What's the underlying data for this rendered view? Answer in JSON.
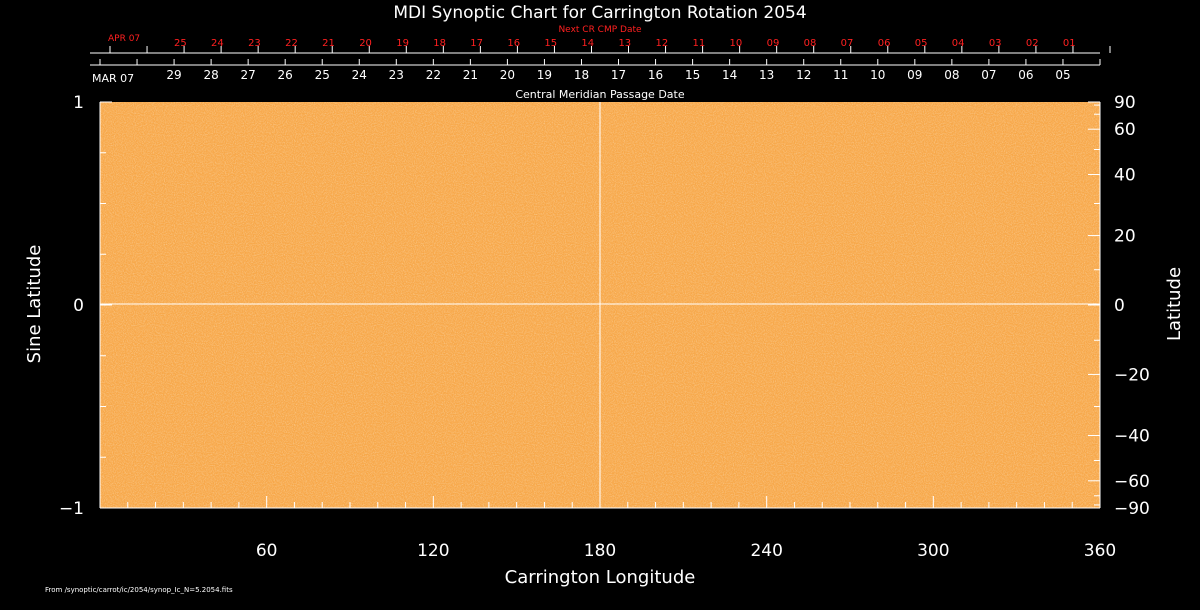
{
  "chart_data": {
    "type": "heatmap",
    "title": "MDI Synoptic Chart for Carrington Rotation 2054",
    "xlabel": "Carrington Longitude",
    "ylabel_left": "Sine Latitude",
    "ylabel_right": "Latitude",
    "xlim": [
      0,
      360
    ],
    "ylim": [
      -1,
      1
    ],
    "x_tick_labels": [
      "60",
      "120",
      "180",
      "240",
      "300",
      "360"
    ],
    "x_tick_values": [
      60,
      120,
      180,
      240,
      300,
      360
    ],
    "left_tick_labels": [
      "1",
      "0",
      "−1"
    ],
    "left_tick_values": [
      1,
      0,
      -1
    ],
    "right_tick_labels": [
      "90",
      "60",
      "40",
      "20",
      "0",
      "−20",
      "−40",
      "−60",
      "−90"
    ],
    "right_tick_values": [
      90,
      60,
      40,
      20,
      0,
      -20,
      -40,
      -60,
      -90
    ],
    "grid_lines": {
      "longitude": 180,
      "sine_latitude": 0
    },
    "map_color": "#f7a84a",
    "top_axis": {
      "title": "Central Meridian Passage Date",
      "month_label": "MAR 07",
      "dates": [
        "29",
        "28",
        "27",
        "26",
        "25",
        "24",
        "23",
        "22",
        "21",
        "20",
        "19",
        "18",
        "17",
        "16",
        "15",
        "14",
        "13",
        "12",
        "11",
        "10",
        "09",
        "08",
        "07",
        "06",
        "05"
      ]
    },
    "next_cr_axis": {
      "title": "Next CR CMP Date",
      "month_label": "APR 07",
      "dates": [
        "25",
        "24",
        "23",
        "22",
        "21",
        "20",
        "19",
        "18",
        "17",
        "16",
        "15",
        "14",
        "13",
        "12",
        "11",
        "10",
        "09",
        "08",
        "07",
        "06",
        "05",
        "04",
        "03",
        "02",
        "01"
      ],
      "color": "#ff2020"
    },
    "footer": "From /synoptic/carrot/ic/2054/synop_Ic_N=5.2054.fits"
  }
}
